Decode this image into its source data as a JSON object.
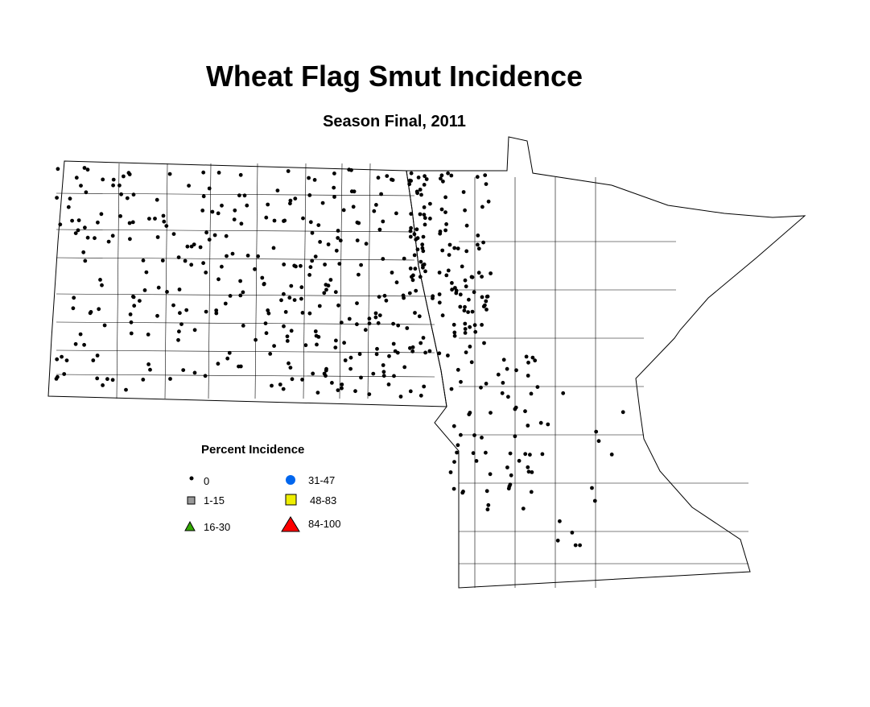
{
  "title": "Wheat Flag Smut Incidence",
  "subtitle": "Season Final, 2011",
  "legend": {
    "title": "Percent Incidence",
    "items": [
      {
        "label": "0",
        "symbol": "small-dot",
        "color": "#000000"
      },
      {
        "label": "1-15",
        "symbol": "square",
        "color": "#999999"
      },
      {
        "label": "16-30",
        "symbol": "triangle",
        "color": "#33aa00"
      },
      {
        "label": "31-47",
        "symbol": "circle",
        "color": "#0066ee"
      },
      {
        "label": "48-83",
        "symbol": "square",
        "color": "#eeee00"
      },
      {
        "label": "84-100",
        "symbol": "triangle",
        "color": "#ff0000"
      }
    ]
  },
  "map": {
    "regions": [
      "North Dakota",
      "Minnesota"
    ],
    "observed_category": "0"
  }
}
